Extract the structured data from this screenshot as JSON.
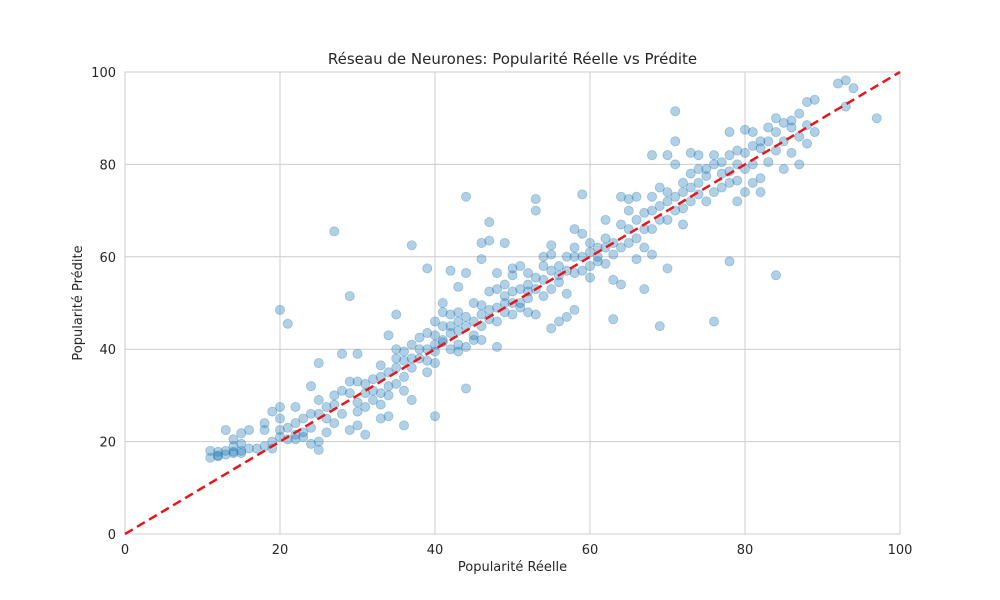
{
  "chart_data": {
    "type": "scatter",
    "title": "Réseau de Neurones: Popularité Réelle vs Prédite",
    "xlabel": "Popularité Réelle",
    "ylabel": "Popularité Prédite",
    "xlim": [
      0,
      100
    ],
    "ylim": [
      0,
      100
    ],
    "xticks": [
      "0",
      "20",
      "40",
      "60",
      "80",
      "100"
    ],
    "yticks": [
      "0",
      "20",
      "40",
      "60",
      "80",
      "100"
    ],
    "grid": true,
    "point_color": "#1f77b4",
    "point_alpha": 0.35,
    "reference_line": {
      "x": [
        0,
        100
      ],
      "y": [
        0,
        100
      ],
      "color": "#e8161a",
      "style": "dashed"
    },
    "series": [
      {
        "points": [
          [
            11,
            16.5
          ],
          [
            11,
            18
          ],
          [
            12,
            17
          ],
          [
            12,
            17.8
          ],
          [
            12,
            16.8
          ],
          [
            13,
            18
          ],
          [
            13,
            17.2
          ],
          [
            13,
            22.5
          ],
          [
            14,
            17.5
          ],
          [
            14,
            19
          ],
          [
            14,
            20.5
          ],
          [
            14,
            17.8
          ],
          [
            15,
            18
          ],
          [
            15,
            17.5
          ],
          [
            15,
            19.5
          ],
          [
            15,
            21.8
          ],
          [
            16,
            18.5
          ],
          [
            16,
            22.5
          ],
          [
            17,
            18.5
          ],
          [
            18,
            19
          ],
          [
            18,
            24
          ],
          [
            18,
            22.5
          ],
          [
            19,
            18.5
          ],
          [
            19,
            20
          ],
          [
            19,
            26.5
          ],
          [
            20,
            27.5
          ],
          [
            20,
            25
          ],
          [
            20,
            22.5
          ],
          [
            20,
            21
          ],
          [
            20,
            48.5
          ],
          [
            21,
            45.5
          ],
          [
            21,
            20.5
          ],
          [
            21,
            23
          ],
          [
            22,
            20.5
          ],
          [
            22,
            24
          ],
          [
            22,
            27.5
          ],
          [
            22,
            21.5
          ],
          [
            23,
            22
          ],
          [
            23,
            25
          ],
          [
            23,
            21
          ],
          [
            24,
            23
          ],
          [
            24,
            26
          ],
          [
            24,
            32
          ],
          [
            24,
            19.5
          ],
          [
            25,
            18.2
          ],
          [
            25,
            20
          ],
          [
            25,
            29
          ],
          [
            25,
            37
          ],
          [
            25,
            26
          ],
          [
            26,
            25
          ],
          [
            26,
            27.5
          ],
          [
            26,
            22
          ],
          [
            27,
            65.5
          ],
          [
            27,
            24
          ],
          [
            27,
            28
          ],
          [
            27,
            30
          ],
          [
            28,
            26
          ],
          [
            28,
            31
          ],
          [
            28,
            39
          ],
          [
            29,
            51.5
          ],
          [
            29,
            33
          ],
          [
            29,
            30.5
          ],
          [
            29,
            22.5
          ],
          [
            30,
            28.5
          ],
          [
            30,
            33
          ],
          [
            30,
            39
          ],
          [
            30,
            26.5
          ],
          [
            30,
            23.5
          ],
          [
            31,
            21.5
          ],
          [
            31,
            30.5
          ],
          [
            31,
            27.5
          ],
          [
            31,
            32.5
          ],
          [
            32,
            29
          ],
          [
            32,
            33.5
          ],
          [
            32,
            31
          ],
          [
            33,
            25
          ],
          [
            33,
            34
          ],
          [
            33,
            36.5
          ],
          [
            33,
            28
          ],
          [
            33,
            30.5
          ],
          [
            34,
            30
          ],
          [
            34,
            32
          ],
          [
            34,
            43
          ],
          [
            34,
            35
          ],
          [
            34,
            25.5
          ],
          [
            35,
            38
          ],
          [
            35,
            32.5
          ],
          [
            35,
            36
          ],
          [
            35,
            47.5
          ],
          [
            35,
            40
          ],
          [
            36,
            37.5
          ],
          [
            36,
            34
          ],
          [
            36,
            23.5
          ],
          [
            36,
            31
          ],
          [
            36,
            39.5
          ],
          [
            37,
            38
          ],
          [
            37,
            62.5
          ],
          [
            37,
            36
          ],
          [
            37,
            41
          ],
          [
            37,
            29
          ],
          [
            38,
            40
          ],
          [
            38,
            38
          ],
          [
            38,
            42.5
          ],
          [
            39,
            57.5
          ],
          [
            39,
            43.5
          ],
          [
            39,
            37.5
          ],
          [
            39,
            35
          ],
          [
            39,
            40
          ],
          [
            40,
            41
          ],
          [
            40,
            25.5
          ],
          [
            40,
            46
          ],
          [
            40,
            43
          ],
          [
            40,
            39.5
          ],
          [
            40,
            37
          ],
          [
            41,
            45
          ],
          [
            41,
            48
          ],
          [
            41,
            50
          ],
          [
            41,
            41.5
          ],
          [
            41,
            42
          ],
          [
            42,
            43.5
          ],
          [
            42,
            57
          ],
          [
            42,
            47.5
          ],
          [
            42,
            40
          ],
          [
            42,
            45
          ],
          [
            43,
            46
          ],
          [
            43,
            48
          ],
          [
            43,
            44
          ],
          [
            43,
            39.5
          ],
          [
            43,
            41
          ],
          [
            43,
            53.5
          ],
          [
            44,
            73
          ],
          [
            44,
            56.5
          ],
          [
            44,
            31.5
          ],
          [
            44,
            45
          ],
          [
            44,
            47
          ],
          [
            44,
            40.5
          ],
          [
            45,
            43
          ],
          [
            45,
            46
          ],
          [
            45,
            42
          ],
          [
            45,
            50
          ],
          [
            46,
            47.5
          ],
          [
            46,
            45
          ],
          [
            46,
            59.5
          ],
          [
            46,
            63
          ],
          [
            46,
            49.5
          ],
          [
            46,
            42
          ],
          [
            47,
            48.5
          ],
          [
            47,
            67.5
          ],
          [
            47,
            63.5
          ],
          [
            47,
            46.5
          ],
          [
            47,
            52.5
          ],
          [
            48,
            49
          ],
          [
            48,
            40.5
          ],
          [
            48,
            46
          ],
          [
            48,
            53
          ],
          [
            48,
            56.5
          ],
          [
            49,
            63
          ],
          [
            49,
            48
          ],
          [
            49,
            50
          ],
          [
            49,
            54
          ],
          [
            49,
            51.5
          ],
          [
            50,
            50
          ],
          [
            50,
            52.5
          ],
          [
            50,
            47.5
          ],
          [
            50,
            56
          ],
          [
            50,
            57.5
          ],
          [
            51,
            53
          ],
          [
            51,
            50
          ],
          [
            51,
            49
          ],
          [
            51,
            58
          ],
          [
            52,
            52.5
          ],
          [
            52,
            54
          ],
          [
            52,
            51
          ],
          [
            52,
            48
          ],
          [
            52,
            56.5
          ],
          [
            53,
            72.5
          ],
          [
            53,
            70
          ],
          [
            53,
            53
          ],
          [
            53,
            55.5
          ],
          [
            53,
            47.5
          ],
          [
            54,
            55
          ],
          [
            54,
            58
          ],
          [
            54,
            51.5
          ],
          [
            54,
            60
          ],
          [
            55,
            60.5
          ],
          [
            55,
            62.5
          ],
          [
            55,
            44.5
          ],
          [
            55,
            53
          ],
          [
            55,
            57
          ],
          [
            56,
            56
          ],
          [
            56,
            58
          ],
          [
            56,
            54.5
          ],
          [
            56,
            46
          ],
          [
            57,
            57
          ],
          [
            57,
            47
          ],
          [
            57,
            60
          ],
          [
            57,
            52
          ],
          [
            58,
            60
          ],
          [
            58,
            66
          ],
          [
            58,
            56.5
          ],
          [
            58,
            48.5
          ],
          [
            58,
            62
          ],
          [
            59,
            73.5
          ],
          [
            59,
            65
          ],
          [
            59,
            60
          ],
          [
            59,
            57
          ],
          [
            60,
            63
          ],
          [
            60,
            58
          ],
          [
            60,
            61
          ],
          [
            60,
            55.5
          ],
          [
            61,
            60
          ],
          [
            61,
            62
          ],
          [
            61,
            59
          ],
          [
            62,
            68
          ],
          [
            62,
            62
          ],
          [
            62,
            64
          ],
          [
            62,
            58.5
          ],
          [
            63,
            46.5
          ],
          [
            63,
            63
          ],
          [
            63,
            55
          ],
          [
            63,
            60.5
          ],
          [
            64,
            73
          ],
          [
            64,
            67
          ],
          [
            64,
            62
          ],
          [
            64,
            54
          ],
          [
            65,
            66
          ],
          [
            65,
            72.5
          ],
          [
            65,
            63
          ],
          [
            65,
            70
          ],
          [
            66,
            64
          ],
          [
            66,
            73
          ],
          [
            66,
            68
          ],
          [
            66,
            59.5
          ],
          [
            67,
            62
          ],
          [
            67,
            66
          ],
          [
            67,
            69.5
          ],
          [
            67,
            53
          ],
          [
            68,
            82
          ],
          [
            68,
            73
          ],
          [
            68,
            70
          ],
          [
            68,
            60.5
          ],
          [
            68,
            66
          ],
          [
            69,
            71
          ],
          [
            69,
            45
          ],
          [
            69,
            75
          ],
          [
            69,
            68
          ],
          [
            70,
            82
          ],
          [
            70,
            57.5
          ],
          [
            70,
            72
          ],
          [
            70,
            74
          ],
          [
            70,
            68
          ],
          [
            71,
            91.5
          ],
          [
            71,
            85
          ],
          [
            71,
            80
          ],
          [
            71,
            73
          ],
          [
            71,
            70
          ],
          [
            72,
            70.5
          ],
          [
            72,
            76
          ],
          [
            72,
            67
          ],
          [
            72,
            74
          ],
          [
            73,
            82.5
          ],
          [
            73,
            78
          ],
          [
            73,
            72
          ],
          [
            73,
            75
          ],
          [
            74,
            79
          ],
          [
            74,
            82
          ],
          [
            74,
            73.5
          ],
          [
            74,
            76
          ],
          [
            75,
            77.5
          ],
          [
            75,
            72
          ],
          [
            75,
            79
          ],
          [
            76,
            46
          ],
          [
            76,
            80
          ],
          [
            76,
            82
          ],
          [
            76,
            74
          ],
          [
            77,
            75
          ],
          [
            77,
            78
          ],
          [
            77,
            80.5
          ],
          [
            78,
            59
          ],
          [
            78,
            87
          ],
          [
            78,
            76
          ],
          [
            78,
            82
          ],
          [
            78,
            78.5
          ],
          [
            79,
            80
          ],
          [
            79,
            72
          ],
          [
            79,
            76.5
          ],
          [
            79,
            83
          ],
          [
            80,
            87.5
          ],
          [
            80,
            82.5
          ],
          [
            80,
            79
          ],
          [
            80,
            74
          ],
          [
            81,
            84
          ],
          [
            81,
            76
          ],
          [
            81,
            80
          ],
          [
            81,
            87
          ],
          [
            82,
            83.5
          ],
          [
            82,
            85
          ],
          [
            82,
            77
          ],
          [
            82,
            74
          ],
          [
            83,
            88
          ],
          [
            83,
            85
          ],
          [
            83,
            80.5
          ],
          [
            84,
            56
          ],
          [
            84,
            90
          ],
          [
            84,
            87
          ],
          [
            84,
            83
          ],
          [
            85,
            85
          ],
          [
            85,
            89
          ],
          [
            85,
            79
          ],
          [
            86,
            89.5
          ],
          [
            86,
            88
          ],
          [
            86,
            82.5
          ],
          [
            87,
            80
          ],
          [
            87,
            91
          ],
          [
            87,
            86
          ],
          [
            88,
            93.5
          ],
          [
            88,
            88.5
          ],
          [
            88,
            84.5
          ],
          [
            89,
            94
          ],
          [
            89,
            87
          ],
          [
            92,
            97.5
          ],
          [
            93,
            98.2
          ],
          [
            93,
            92.5
          ],
          [
            94,
            96.5
          ],
          [
            97,
            90
          ]
        ]
      }
    ]
  }
}
